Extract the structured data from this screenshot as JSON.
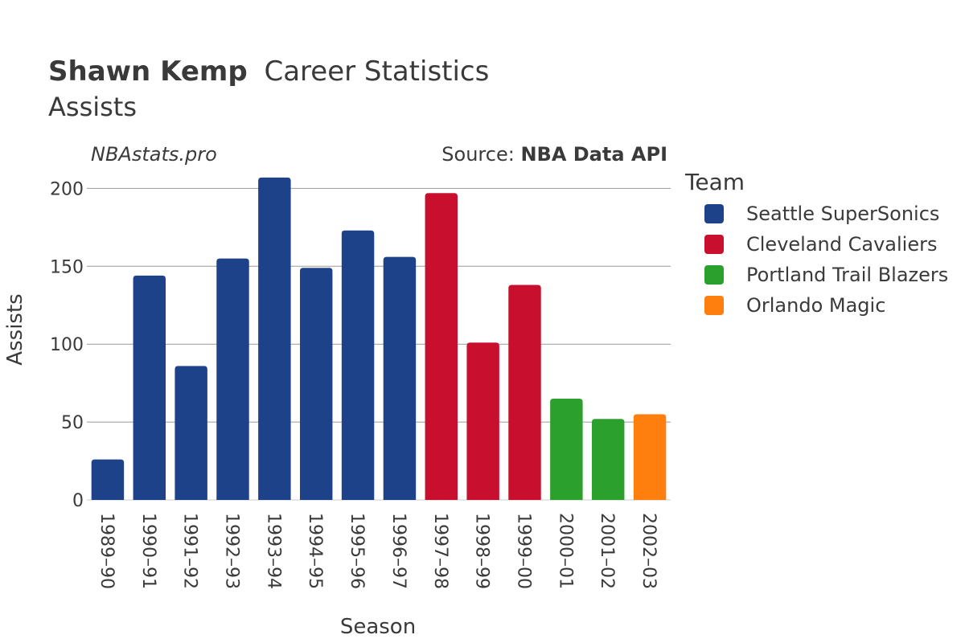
{
  "header": {
    "title_bold": "Shawn Kemp",
    "title_rest": "Career Statistics",
    "subtitle": "Assists",
    "watermark": "NBAstats.pro",
    "source_prefix": "Source: ",
    "source_name": "NBA Data API"
  },
  "legend": {
    "title": "Team",
    "items": [
      {
        "name": "Seattle SuperSonics",
        "color": "#1d4289"
      },
      {
        "name": "Cleveland Cavaliers",
        "color": "#c8102e"
      },
      {
        "name": "Portland Trail Blazers",
        "color": "#2ca02c"
      },
      {
        "name": "Orlando Magic",
        "color": "#ff7f0e"
      }
    ]
  },
  "chart_data": {
    "type": "bar",
    "title": "Shawn Kemp Career Statistics",
    "subtitle": "Assists",
    "xlabel": "Season",
    "ylabel": "Assists",
    "ylim": [
      0,
      210
    ],
    "yticks": [
      0,
      50,
      100,
      150,
      200
    ],
    "grid": true,
    "legend_position": "right",
    "categories": [
      "1989–90",
      "1990–91",
      "1991–92",
      "1992–93",
      "1993–94",
      "1994–95",
      "1995–96",
      "1996–97",
      "1997–98",
      "1998–99",
      "1999–00",
      "2000–01",
      "2001–02",
      "2002–03"
    ],
    "values": [
      26,
      144,
      86,
      155,
      207,
      149,
      173,
      156,
      197,
      101,
      138,
      65,
      52,
      55
    ],
    "teams": [
      "Seattle SuperSonics",
      "Seattle SuperSonics",
      "Seattle SuperSonics",
      "Seattle SuperSonics",
      "Seattle SuperSonics",
      "Seattle SuperSonics",
      "Seattle SuperSonics",
      "Seattle SuperSonics",
      "Cleveland Cavaliers",
      "Cleveland Cavaliers",
      "Cleveland Cavaliers",
      "Portland Trail Blazers",
      "Portland Trail Blazers",
      "Orlando Magic"
    ]
  }
}
